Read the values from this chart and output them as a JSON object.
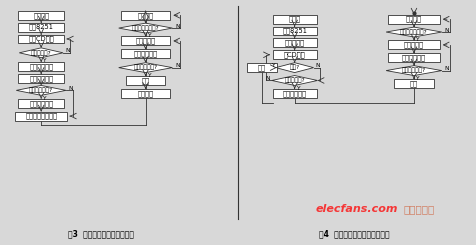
{
  "bg_color": "#d8d8d8",
  "fig3_title": "图3  下位机响应呼叫程序框图",
  "fig4_title": "图4  下位机报警与呼叫程序框图",
  "watermark": "elecfans.com",
  "watermark2": "电子发烧友",
  "fig3_left_boxes": [
    "保护现场",
    "设置8251",
    "读取CD信号",
    "建立通信链路",
    "接收命令信息",
    "执行遥控命令",
    "发送命令执行应答"
  ],
  "fig3_left_diamonds": [
    "载波有效否?",
    "有无遥控命令?"
  ],
  "fig3_right_boxes": [
    "发送数据",
    "发送校验和",
    "等待接收应答",
    "挂机",
    "恢复现场"
  ],
  "fig3_right_diamonds": [
    "数据发送结束否?",
    "接收正确与否?"
  ],
  "fig4_left_boxes": [
    "关中断",
    "设置8251",
    "发主叫号码",
    "读CD信号",
    "建立通信链路"
  ],
  "fig4_left_diamonds": [
    "超时?",
    "载波有效否?"
  ],
  "fig4_left_side_box": "挂机",
  "fig4_right_boxes": [
    "发送数据",
    "发送校验和",
    "等待接收应答",
    "挂机"
  ],
  "fig4_right_diamonds": [
    "数据发送结束否?",
    "接收正确与否?"
  ]
}
